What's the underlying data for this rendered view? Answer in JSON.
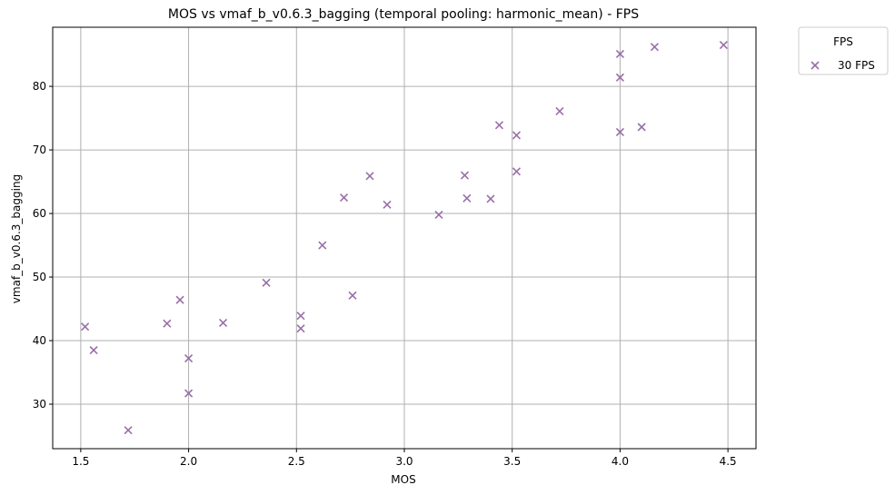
{
  "chart_data": {
    "type": "scatter",
    "title": "MOS vs vmaf_b_v0.6.3_bagging (temporal pooling: harmonic_mean) - FPS",
    "xlabel": "MOS",
    "ylabel": "vmaf_b_v0.6.3_bagging",
    "xlim": [
      1.37,
      4.63
    ],
    "ylim": [
      23.0,
      89.3
    ],
    "xticks": [
      1.5,
      2.0,
      2.5,
      3.0,
      3.5,
      4.0,
      4.5
    ],
    "xtick_labels": [
      "1.5",
      "2.0",
      "2.5",
      "3.0",
      "3.5",
      "4.0",
      "4.5"
    ],
    "yticks": [
      30,
      40,
      50,
      60,
      70,
      80
    ],
    "ytick_labels": [
      "30",
      "40",
      "50",
      "60",
      "70",
      "80"
    ],
    "grid": true,
    "legend": {
      "title": "FPS",
      "placement": "outside-top-right"
    },
    "series": [
      {
        "name": "30 FPS",
        "marker": "x",
        "color": "#9a6fa8",
        "points": [
          {
            "x": 1.52,
            "y": 42.2
          },
          {
            "x": 1.56,
            "y": 38.5
          },
          {
            "x": 1.72,
            "y": 25.9
          },
          {
            "x": 1.9,
            "y": 42.7
          },
          {
            "x": 1.96,
            "y": 46.4
          },
          {
            "x": 2.0,
            "y": 37.2
          },
          {
            "x": 2.0,
            "y": 31.7
          },
          {
            "x": 2.16,
            "y": 42.8
          },
          {
            "x": 2.36,
            "y": 49.1
          },
          {
            "x": 2.52,
            "y": 43.9
          },
          {
            "x": 2.52,
            "y": 41.9
          },
          {
            "x": 2.62,
            "y": 55.0
          },
          {
            "x": 2.72,
            "y": 62.5
          },
          {
            "x": 2.76,
            "y": 47.1
          },
          {
            "x": 2.84,
            "y": 65.9
          },
          {
            "x": 2.92,
            "y": 61.4
          },
          {
            "x": 3.16,
            "y": 59.8
          },
          {
            "x": 3.28,
            "y": 66.0
          },
          {
            "x": 3.29,
            "y": 62.4
          },
          {
            "x": 3.4,
            "y": 62.3
          },
          {
            "x": 3.44,
            "y": 73.9
          },
          {
            "x": 3.52,
            "y": 72.3
          },
          {
            "x": 3.52,
            "y": 66.6
          },
          {
            "x": 3.72,
            "y": 76.1
          },
          {
            "x": 4.0,
            "y": 85.1
          },
          {
            "x": 4.0,
            "y": 81.4
          },
          {
            "x": 4.0,
            "y": 72.8
          },
          {
            "x": 4.1,
            "y": 73.6
          },
          {
            "x": 4.16,
            "y": 86.2
          },
          {
            "x": 4.48,
            "y": 86.5
          }
        ]
      }
    ]
  }
}
